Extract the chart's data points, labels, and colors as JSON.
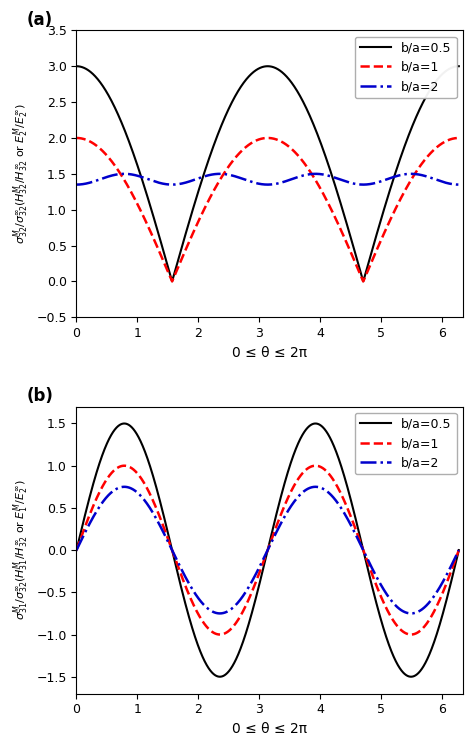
{
  "title_a": "(a)",
  "title_b": "(b)",
  "xlabel": "0 ≤ θ ≤ 2π",
  "ylim_a": [
    -0.5,
    3.5
  ],
  "ylim_b": [
    -1.7,
    1.7
  ],
  "xlim": [
    0,
    6.35
  ],
  "yticks_a": [
    -0.5,
    0.0,
    0.5,
    1.0,
    1.5,
    2.0,
    2.5,
    3.0,
    3.5
  ],
  "yticks_b": [
    -1.5,
    -1.0,
    -0.5,
    0.0,
    0.5,
    1.0,
    1.5
  ],
  "xticks": [
    0,
    1,
    2,
    3,
    4,
    5,
    6
  ],
  "legend_labels": [
    "b/a=0.5",
    "b/a=1",
    "b/a=2"
  ],
  "colors": [
    "#000000",
    "#FF0000",
    "#0000CC"
  ],
  "linestyles": [
    "-",
    "--",
    "-."
  ],
  "linewidths": [
    1.5,
    1.8,
    1.8
  ],
  "background_color": "#ffffff",
  "ylabel_a_latex": "$\\sigma_{32}^M/\\sigma_{32}^\\infty(H_{32}^M/H_{32}^\\infty$ or $E_2^M/E_2^\\infty)$",
  "ylabel_b_latex": "$\\sigma_{31}^M/\\sigma_{32}^\\infty(H_{31}^M/H_{32}^\\infty$ or $E_1^M/E_2^\\infty)$"
}
